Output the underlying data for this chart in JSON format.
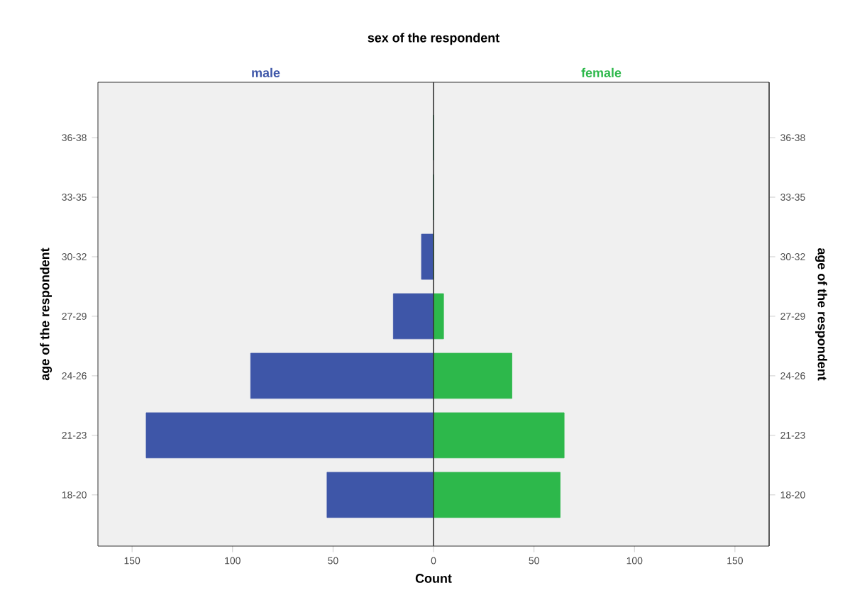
{
  "chart_data": {
    "type": "bar",
    "orientation": "horizontal",
    "title": "sex of the respondent",
    "xlabel": "Count",
    "ylabel": "age of the respondent",
    "y2label": "age of the respondent",
    "categories": [
      "36-38",
      "33-35",
      "30-32",
      "27-29",
      "24-26",
      "21-23",
      "18-20"
    ],
    "series": [
      {
        "name": "male",
        "color": "#3e56a8",
        "values": [
          0,
          0,
          -6,
          -20,
          -91,
          -143,
          -53
        ]
      },
      {
        "name": "female",
        "color": "#2db84b",
        "values": [
          0,
          0,
          0,
          5,
          39,
          65,
          63
        ]
      }
    ],
    "xlim": [
      -167,
      167
    ],
    "xticks": [
      {
        "value": -150,
        "label": "150"
      },
      {
        "value": -100,
        "label": "100"
      },
      {
        "value": -50,
        "label": "50"
      },
      0,
      50,
      100,
      150
    ],
    "ref_lines": [
      {
        "axis": "x",
        "value": 0,
        "color": "#333333"
      }
    ],
    "stacked": true
  }
}
